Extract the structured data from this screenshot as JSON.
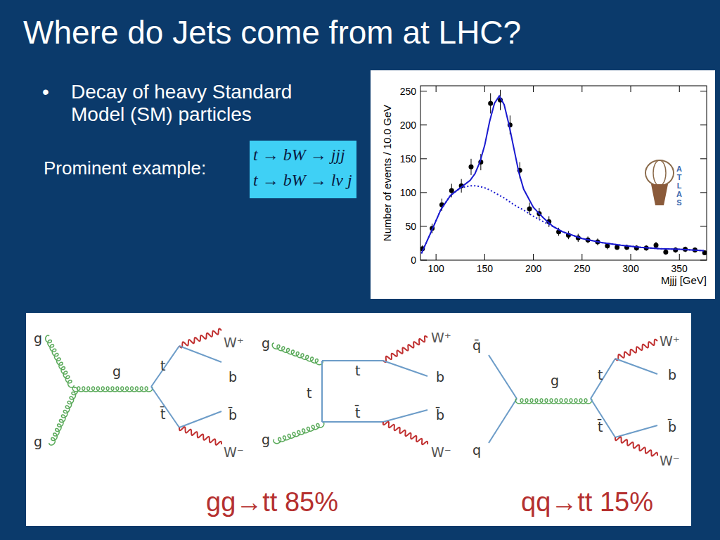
{
  "slide": {
    "title": "Where do Jets come from at LHC?",
    "bullet": "•",
    "bullet_lines": [
      "Decay of heavy Standard",
      "Model (SM) particles"
    ],
    "example_label": "Prominent example:",
    "formulas": [
      "t → bW → jjj",
      "t → bW → lν j"
    ],
    "logo_text": "ATLAS"
  },
  "chart_data": {
    "type": "scatter",
    "xlabel": "Mjjj [GeV]",
    "ylabel": "Number of events / 10.0 GeV",
    "xlim": [
      84,
      378
    ],
    "ylim": [
      0,
      258
    ],
    "xticks": [
      100,
      150,
      200,
      250,
      300,
      350
    ],
    "yticks": [
      0,
      50,
      100,
      150,
      200,
      250
    ],
    "grid": false,
    "series": [
      {
        "type": "scatter",
        "color": "#000000",
        "marker": "circle",
        "x": [
          86,
          96,
          106,
          116,
          126,
          136,
          146,
          156,
          166,
          176,
          186,
          196,
          206,
          216,
          226,
          236,
          246,
          256,
          266,
          276,
          286,
          296,
          306,
          316,
          326,
          336,
          346,
          356,
          366,
          376
        ],
        "values": [
          17,
          47,
          82,
          103,
          110,
          138,
          145,
          232,
          237,
          200,
          133,
          76,
          69,
          57,
          42,
          37,
          33,
          30,
          27,
          21,
          19,
          19,
          18,
          18,
          22,
          12,
          15,
          16,
          15,
          11
        ],
        "errors": [
          5,
          7,
          9,
          10,
          10,
          12,
          12,
          15,
          15,
          14,
          12,
          9,
          8,
          8,
          6,
          6,
          6,
          5,
          5,
          5,
          4,
          4,
          4,
          4,
          5,
          4,
          4,
          4,
          4,
          3
        ]
      },
      {
        "type": "line",
        "color": "#1a1ad0",
        "line_style": "solid",
        "x": [
          85,
          95,
          105,
          115,
          125,
          135,
          140,
          145,
          150,
          155,
          160,
          165,
          170,
          175,
          180,
          185,
          190,
          200,
          210,
          220,
          230,
          250,
          270,
          290,
          310,
          330,
          350,
          375
        ],
        "values": [
          10,
          42,
          75,
          96,
          107,
          118,
          128,
          145,
          170,
          205,
          232,
          243,
          230,
          200,
          165,
          130,
          105,
          78,
          63,
          50,
          42,
          32,
          26,
          22,
          19,
          17,
          16,
          14
        ]
      },
      {
        "type": "line",
        "color": "#1a1ad0",
        "line_style": "dotted",
        "x": [
          85,
          95,
          105,
          115,
          125,
          135,
          140,
          145,
          150,
          155,
          160,
          165,
          170,
          175,
          180,
          185,
          190,
          200,
          210,
          220,
          230,
          250,
          270,
          290,
          310,
          330,
          350,
          375
        ],
        "values": [
          10,
          42,
          75,
          96,
          107,
          110,
          110,
          109,
          107,
          104,
          100,
          96,
          92,
          87,
          82,
          78,
          74,
          65,
          57,
          50,
          42,
          32,
          26,
          22,
          19,
          17,
          16,
          14
        ]
      }
    ]
  },
  "diagrams": {
    "items": [
      {
        "labels": [
          "g",
          "g",
          "g",
          "t",
          "t̄",
          "W⁺",
          "b",
          "b̄",
          "W⁻"
        ]
      },
      {
        "labels": [
          "g",
          "g",
          "t",
          "t",
          "t̄",
          "W⁺",
          "b",
          "b̄",
          "W⁻"
        ]
      },
      {
        "labels": [
          "q̄",
          "q",
          "g",
          "t",
          "t̄",
          "W⁺",
          "b",
          "b̄",
          "W⁻"
        ]
      }
    ],
    "captions": [
      "gg→tt 85%",
      "qq→tt 15%"
    ]
  }
}
